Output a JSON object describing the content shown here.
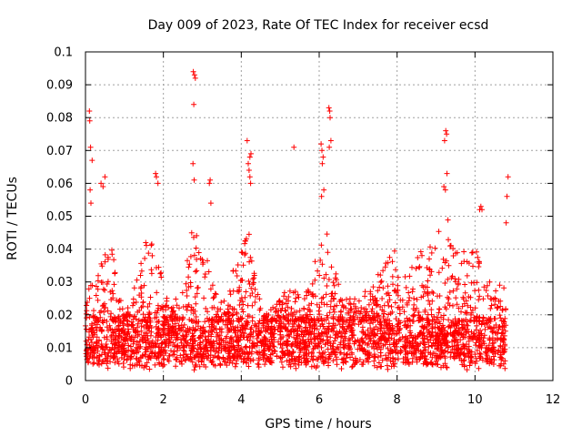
{
  "chart_data": {
    "type": "scatter",
    "title": "Day 009 of 2023, Rate Of TEC Index for receiver ecsd",
    "xlabel": "GPS time / hours",
    "ylabel": "ROTI / TECUs",
    "xlim": [
      0,
      12
    ],
    "ylim": [
      0,
      0.1
    ],
    "xticks": [
      "0",
      "2",
      "4",
      "6",
      "8",
      "10",
      "12"
    ],
    "yticks": [
      "0",
      "0.01",
      "0.02",
      "0.03",
      "0.04",
      "0.05",
      "0.06",
      "0.07",
      "0.08",
      "0.09",
      "0.1"
    ],
    "grid": true,
    "marker": "+",
    "color": "#ff0000",
    "series": [
      {
        "name": "ROTI",
        "x_range": [
          0,
          10.8
        ],
        "baseline_band": [
          0.005,
          0.018
        ],
        "envelope": [
          [
            0.0,
            0.03
          ],
          [
            0.3,
            0.03
          ],
          [
            0.5,
            0.046
          ],
          [
            0.7,
            0.04
          ],
          [
            0.9,
            0.025
          ],
          [
            1.0,
            0.02
          ],
          [
            1.2,
            0.025
          ],
          [
            1.4,
            0.04
          ],
          [
            1.6,
            0.045
          ],
          [
            1.8,
            0.04
          ],
          [
            2.0,
            0.03
          ],
          [
            2.2,
            0.022
          ],
          [
            2.5,
            0.03
          ],
          [
            2.7,
            0.045
          ],
          [
            2.8,
            0.05
          ],
          [
            3.0,
            0.04
          ],
          [
            3.2,
            0.035
          ],
          [
            3.4,
            0.025
          ],
          [
            3.6,
            0.025
          ],
          [
            3.8,
            0.035
          ],
          [
            4.0,
            0.04
          ],
          [
            4.2,
            0.045
          ],
          [
            4.4,
            0.03
          ],
          [
            4.6,
            0.02
          ],
          [
            5.0,
            0.025
          ],
          [
            5.3,
            0.03
          ],
          [
            5.5,
            0.025
          ],
          [
            5.8,
            0.03
          ],
          [
            6.0,
            0.045
          ],
          [
            6.2,
            0.045
          ],
          [
            6.4,
            0.035
          ],
          [
            6.6,
            0.025
          ],
          [
            7.0,
            0.025
          ],
          [
            7.4,
            0.03
          ],
          [
            7.8,
            0.04
          ],
          [
            8.0,
            0.04
          ],
          [
            8.3,
            0.035
          ],
          [
            8.6,
            0.04
          ],
          [
            8.8,
            0.04
          ],
          [
            9.0,
            0.045
          ],
          [
            9.3,
            0.05
          ],
          [
            9.5,
            0.04
          ],
          [
            9.8,
            0.04
          ],
          [
            10.0,
            0.04
          ],
          [
            10.2,
            0.04
          ],
          [
            10.4,
            0.03
          ],
          [
            10.6,
            0.03
          ],
          [
            10.8,
            0.035
          ]
        ],
        "peaks": [
          [
            0.1,
            0.082
          ],
          [
            0.11,
            0.079
          ],
          [
            0.13,
            0.071
          ],
          [
            0.17,
            0.067
          ],
          [
            0.12,
            0.058
          ],
          [
            0.14,
            0.054
          ],
          [
            0.4,
            0.06
          ],
          [
            0.45,
            0.059
          ],
          [
            0.5,
            0.062
          ],
          [
            1.8,
            0.063
          ],
          [
            1.82,
            0.062
          ],
          [
            1.86,
            0.06
          ],
          [
            2.77,
            0.094
          ],
          [
            2.8,
            0.093
          ],
          [
            2.82,
            0.092
          ],
          [
            2.78,
            0.084
          ],
          [
            2.76,
            0.066
          ],
          [
            2.79,
            0.061
          ],
          [
            3.2,
            0.061
          ],
          [
            3.18,
            0.06
          ],
          [
            3.22,
            0.054
          ],
          [
            4.15,
            0.073
          ],
          [
            4.25,
            0.069
          ],
          [
            4.22,
            0.068
          ],
          [
            4.18,
            0.066
          ],
          [
            4.2,
            0.064
          ],
          [
            4.22,
            0.062
          ],
          [
            4.24,
            0.06
          ],
          [
            5.35,
            0.071
          ],
          [
            6.05,
            0.072
          ],
          [
            6.07,
            0.07
          ],
          [
            6.1,
            0.068
          ],
          [
            6.08,
            0.066
          ],
          [
            6.12,
            0.058
          ],
          [
            6.06,
            0.056
          ],
          [
            6.25,
            0.083
          ],
          [
            6.27,
            0.082
          ],
          [
            6.28,
            0.08
          ],
          [
            6.3,
            0.073
          ],
          [
            6.26,
            0.071
          ],
          [
            9.25,
            0.076
          ],
          [
            9.27,
            0.075
          ],
          [
            9.22,
            0.073
          ],
          [
            9.28,
            0.063
          ],
          [
            9.2,
            0.059
          ],
          [
            9.24,
            0.058
          ],
          [
            10.15,
            0.053
          ],
          [
            10.12,
            0.052
          ],
          [
            10.18,
            0.052
          ],
          [
            10.85,
            0.062
          ],
          [
            10.82,
            0.056
          ],
          [
            10.8,
            0.048
          ]
        ]
      }
    ]
  }
}
